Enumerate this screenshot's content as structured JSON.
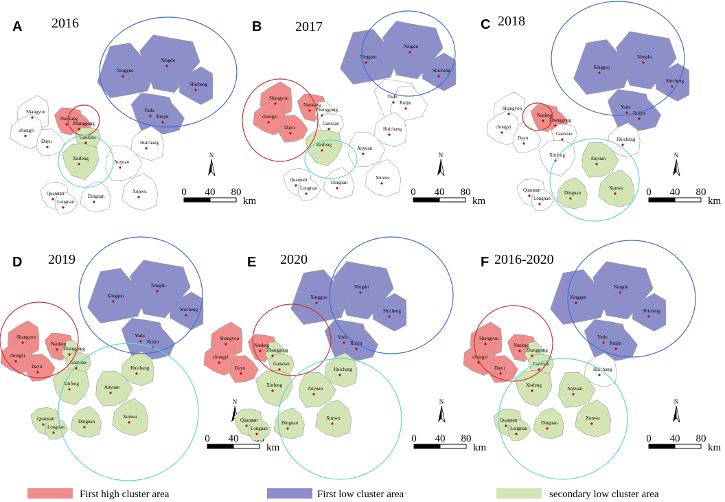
{
  "panels": [
    {
      "letter": "A",
      "title": "2016",
      "places": [
        "Ningdu",
        "Xingguo",
        "Shicheng",
        "Yudu",
        "Ruijin",
        "Shangyou",
        "Nankang",
        "Zhanggong",
        "chongyi",
        "Ganxian",
        "Dayu",
        "Huichang",
        "Xinfeng",
        "Anyuan",
        "Xunwu",
        "Quannan",
        "Longnan",
        "Dingnan"
      ],
      "clusters": [
        "low",
        "low",
        "low",
        "low",
        "low",
        null,
        "high",
        "high",
        null,
        "secondary",
        null,
        null,
        "secondary",
        null,
        null,
        null,
        null,
        null
      ]
    },
    {
      "letter": "B",
      "title": "2017",
      "places": [
        "Ningdu",
        "Xingguo",
        "Shicheng",
        "Yudu",
        "Ruijin",
        "Shangyou",
        "Nankang",
        "Zhanggong",
        "chongyi",
        "Ganxian",
        "Dayu",
        "Huichang",
        "Xinfeng",
        "Anyuan",
        "Xunwu",
        "Quannan",
        "Longnan",
        "Dingnan"
      ],
      "clusters": [
        "low",
        "low",
        "low",
        null,
        null,
        "high",
        "high",
        null,
        "high",
        null,
        "high",
        null,
        "secondary",
        null,
        null,
        null,
        null,
        null
      ]
    },
    {
      "letter": "C",
      "title": "2018",
      "places": [
        "Ningdu",
        "Xingguo",
        "Shicheng",
        "Yudu",
        "Ruijin",
        "Shangyou",
        "Nankng",
        "Zhanggong",
        "chongyi",
        "Ganxian",
        "Dayu",
        "Huichang",
        "Xinfeng",
        "Anyuan",
        "Xunwu",
        "Quannan",
        "Longnan",
        "Dingnan"
      ],
      "clusters": [
        "low",
        "low",
        "low",
        "low",
        "low",
        null,
        "high",
        "high",
        null,
        null,
        null,
        null,
        null,
        "secondary",
        "secondary",
        null,
        null,
        "secondary"
      ]
    },
    {
      "letter": "D",
      "title": "2019",
      "places": [
        "Ningdu",
        "Xingguo",
        "Shicheng",
        "Yudu",
        "Ruijin",
        "Shangyou",
        "Nankng",
        "Zhanggong",
        "chongyi",
        "Ganxian",
        "Dayu",
        "Huichang",
        "Xinfeng",
        "Anyuan",
        "Xunwu",
        "Quannan",
        "Longnan",
        "Dingnan"
      ],
      "clusters": [
        "low",
        "low",
        "low",
        "low",
        "low",
        "high",
        "high",
        "secondary",
        "high",
        "secondary",
        "high",
        "secondary",
        "secondary",
        "secondary",
        "secondary",
        "secondary",
        "secondary",
        "secondary"
      ]
    },
    {
      "letter": "E",
      "title": "2020",
      "places": [
        "Ningdu",
        "Xingguo",
        "Shicheng",
        "Yudu",
        "Ruijin",
        "Shangyou",
        "Nankng",
        "Zhanggong",
        "chongyi",
        "Ganxian",
        "Dayu",
        "Huichang",
        "Xinfeng",
        "Anyuan",
        "Xunwu",
        "Quannan",
        "Longnan",
        "Dingnan"
      ],
      "clusters": [
        "low",
        "low",
        "low",
        "low",
        "low",
        "high",
        "high",
        "secondary",
        "high",
        "secondary",
        "high",
        "secondary",
        "secondary",
        "secondary",
        "secondary",
        "secondary",
        "secondary",
        "secondary"
      ]
    },
    {
      "letter": "F",
      "title": "2016-2020",
      "places": [
        "Ningdu",
        "Xingguo",
        "Shicheng",
        "Yudu",
        "Ruijin",
        "Shangyou",
        "Nankng",
        "Zhanggong",
        "chongyi",
        "Ganxian",
        "Dayu",
        "Huichang",
        "Xinfeng",
        "Anyuan",
        "Xunwu",
        "Quannan",
        "Longnan",
        "Dingnan"
      ],
      "clusters": [
        "low",
        "low",
        "low",
        "low",
        "low",
        "high",
        "high",
        "secondary",
        "high",
        "secondary",
        "high",
        null,
        "secondary",
        "secondary",
        "secondary",
        "secondary",
        "secondary",
        "secondary"
      ]
    }
  ],
  "scale": {
    "labels": [
      "0",
      "40",
      "80"
    ],
    "unit": "km",
    "north": "N"
  },
  "legend": [
    {
      "key": "high",
      "label": "First high cluster area",
      "color": "#f08c8c"
    },
    {
      "key": "low",
      "label": "First low cluster area",
      "color": "#8d8fca"
    },
    {
      "key": "secondary",
      "label": "secondary low cluster area",
      "color": "#d3e5b5"
    }
  ]
}
